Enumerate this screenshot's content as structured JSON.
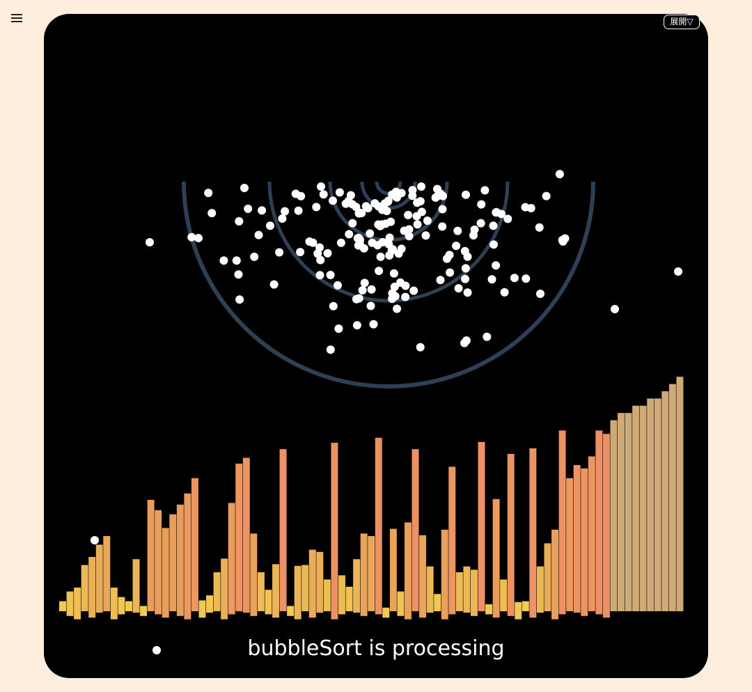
{
  "page": {
    "background_color": "#fdeedd",
    "menu_icon": "hamburger-menu-icon"
  },
  "toolbar": {
    "expand_label": "展開▽"
  },
  "visualization": {
    "algorithm": "bubbleSort",
    "status": "bubbleSort is processing",
    "panel_color": "#000000",
    "arc_color": "#2e4054",
    "particle_color": "#ffffff",
    "bar_color_low": "#f0cf50",
    "bar_color_mid": "#e8a05a",
    "bar_color_high": "#ee9065",
    "bar_color_sorted": "#cfa97a"
  },
  "chart_data": {
    "type": "bar",
    "series": [
      {
        "values": [
          1,
          3,
          4,
          6,
          8,
          9,
          10,
          4,
          2,
          1,
          7,
          1,
          15,
          14,
          12,
          13,
          15,
          17,
          18,
          2,
          2,
          5,
          8,
          15,
          20,
          21,
          11,
          5,
          3,
          7,
          22,
          1,
          7,
          6,
          9,
          8,
          4,
          24,
          5,
          3,
          7,
          11,
          10,
          24,
          1,
          11,
          3,
          13,
          22,
          11,
          6,
          2,
          12,
          20,
          5,
          6,
          6,
          23,
          1,
          16,
          4,
          22,
          2,
          1,
          23,
          6,
          9,
          12,
          25,
          18,
          20,
          20,
          21,
          25,
          25,
          26,
          27,
          27,
          28,
          28,
          29,
          29,
          30,
          31,
          32
        ]
      }
    ]
  }
}
